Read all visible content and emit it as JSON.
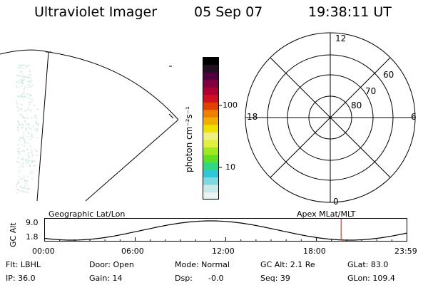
{
  "header": {
    "instrument": "Ultraviolet Imager",
    "date": "05 Sep 07",
    "time": "19:38:11 UT"
  },
  "colorbar": {
    "label": "photon cm⁻²s⁻¹",
    "tick_100": "100",
    "tick_10": "10",
    "colors": [
      "#e8f4f4",
      "#c8e8ea",
      "#80d8e0",
      "#30c8d8",
      "#30d880",
      "#60e020",
      "#a0e820",
      "#e0f040",
      "#f0f080",
      "#f0e000",
      "#f0b000",
      "#f08000",
      "#e04000",
      "#d01020",
      "#b00030",
      "#800040",
      "#500040",
      "#201020",
      "#000000"
    ]
  },
  "polar": {
    "mlt_top": "12",
    "mlt_left": "18",
    "mlt_right": "6",
    "mlt_bottom": "0",
    "lat_60": "60",
    "lat_70": "70",
    "lat_80": "80"
  },
  "altitude_plot": {
    "ylabel": "GC Alt",
    "y_top": "9.0",
    "y_bottom": "1.8",
    "left_title": "Geographic Lat/Lon",
    "right_title": "Apex MLat/MLT",
    "x_ticks": [
      "00:00",
      "06:00",
      "12:00",
      "18:00",
      "23:59"
    ],
    "marker_time_hours": 19.64,
    "line_color": "#000000",
    "marker_color": "#cc4040"
  },
  "info": {
    "flt": "Flt: LBHL",
    "door": "Door: Open",
    "mode": "Mode: Normal",
    "gc_alt": "GC Alt: 2.1 Re",
    "glat": "GLat: 83.0",
    "ip": "IP: 36.0",
    "gain": "Gain: 14",
    "dsp_label": "Dsp:",
    "dsp_value": "-0.0",
    "seq": "Seq: 39",
    "glon": "GLon: 109.4"
  }
}
